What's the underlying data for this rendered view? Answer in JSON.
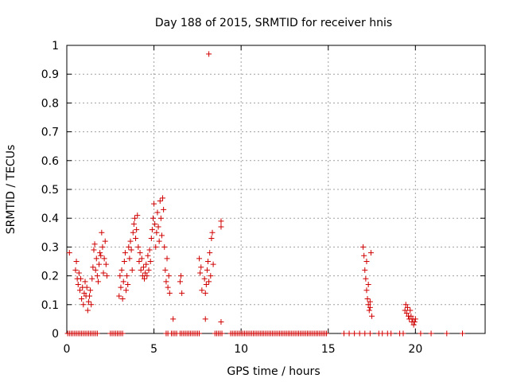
{
  "colors": {
    "series": "#d00000",
    "grid": "#a0a0a0",
    "frame": "#000000",
    "background": "#ffffff"
  },
  "chart_data": {
    "type": "scatter",
    "title": "Day 188 of 2015, SRMTID for receiver hnis",
    "xlabel": "GPS time / hours",
    "ylabel": "SRMTID / TECUs",
    "xlim": [
      0,
      24
    ],
    "ylim": [
      0,
      1
    ],
    "xticks": [
      0,
      5,
      10,
      15,
      20
    ],
    "xtick_labels": [
      "0",
      "5",
      "10",
      "15",
      "20"
    ],
    "yticks": [
      0,
      0.1,
      0.2,
      0.3,
      0.4,
      0.5,
      0.6,
      0.7,
      0.8,
      0.9,
      1
    ],
    "ytick_labels": [
      "0",
      "0.1",
      "0.2",
      "0.3",
      "0.4",
      "0.5",
      "0.6",
      "0.7",
      "0.8",
      "0.9",
      "1"
    ],
    "grid": true,
    "marker": "plus",
    "series": [
      {
        "name": "SRMTID",
        "points": [
          [
            0.15,
            0.28
          ],
          [
            0.5,
            0.22
          ],
          [
            0.55,
            0.25
          ],
          [
            0.6,
            0.19
          ],
          [
            0.65,
            0.17
          ],
          [
            0.7,
            0.21
          ],
          [
            0.75,
            0.15
          ],
          [
            0.8,
            0.19
          ],
          [
            0.85,
            0.12
          ],
          [
            0.9,
            0.16
          ],
          [
            0.95,
            0.1
          ],
          [
            1.0,
            0.14
          ],
          [
            1.05,
            0.18
          ],
          [
            1.1,
            0.13
          ],
          [
            1.15,
            0.16
          ],
          [
            1.2,
            0.08
          ],
          [
            1.25,
            0.11
          ],
          [
            1.3,
            0.13
          ],
          [
            1.35,
            0.15
          ],
          [
            1.4,
            0.1
          ],
          [
            1.45,
            0.19
          ],
          [
            1.5,
            0.23
          ],
          [
            1.55,
            0.29
          ],
          [
            1.6,
            0.31
          ],
          [
            1.65,
            0.22
          ],
          [
            1.7,
            0.26
          ],
          [
            1.75,
            0.2
          ],
          [
            1.8,
            0.18
          ],
          [
            1.85,
            0.24
          ],
          [
            1.9,
            0.28
          ],
          [
            1.95,
            0.27
          ],
          [
            2.0,
            0.35
          ],
          [
            2.05,
            0.3
          ],
          [
            2.1,
            0.21
          ],
          [
            2.15,
            0.26
          ],
          [
            2.2,
            0.32
          ],
          [
            2.25,
            0.24
          ],
          [
            2.3,
            0.2
          ],
          [
            3.0,
            0.13
          ],
          [
            3.05,
            0.2
          ],
          [
            3.1,
            0.16
          ],
          [
            3.15,
            0.22
          ],
          [
            3.2,
            0.12
          ],
          [
            3.25,
            0.18
          ],
          [
            3.3,
            0.25
          ],
          [
            3.35,
            0.28
          ],
          [
            3.4,
            0.15
          ],
          [
            3.45,
            0.2
          ],
          [
            3.5,
            0.17
          ],
          [
            3.55,
            0.3
          ],
          [
            3.6,
            0.26
          ],
          [
            3.65,
            0.32
          ],
          [
            3.7,
            0.29
          ],
          [
            3.75,
            0.22
          ],
          [
            3.8,
            0.35
          ],
          [
            3.85,
            0.38
          ],
          [
            3.9,
            0.4
          ],
          [
            3.95,
            0.33
          ],
          [
            4.0,
            0.36
          ],
          [
            4.05,
            0.41
          ],
          [
            4.1,
            0.3
          ],
          [
            4.15,
            0.25
          ],
          [
            4.2,
            0.28
          ],
          [
            4.25,
            0.22
          ],
          [
            4.3,
            0.26
          ],
          [
            4.35,
            0.2
          ],
          [
            4.4,
            0.23
          ],
          [
            4.45,
            0.19
          ],
          [
            4.5,
            0.21
          ],
          [
            4.55,
            0.24
          ],
          [
            4.6,
            0.2
          ],
          [
            4.65,
            0.27
          ],
          [
            4.7,
            0.22
          ],
          [
            4.75,
            0.29
          ],
          [
            4.8,
            0.25
          ],
          [
            4.85,
            0.33
          ],
          [
            4.9,
            0.36
          ],
          [
            4.95,
            0.4
          ],
          [
            5.0,
            0.45
          ],
          [
            5.05,
            0.38
          ],
          [
            5.1,
            0.3
          ],
          [
            5.15,
            0.35
          ],
          [
            5.2,
            0.42
          ],
          [
            5.25,
            0.37
          ],
          [
            5.3,
            0.32
          ],
          [
            5.35,
            0.46
          ],
          [
            5.4,
            0.4
          ],
          [
            5.45,
            0.34
          ],
          [
            5.5,
            0.47
          ],
          [
            5.55,
            0.43
          ],
          [
            5.6,
            0.3
          ],
          [
            5.65,
            0.22
          ],
          [
            5.7,
            0.18
          ],
          [
            5.75,
            0.26
          ],
          [
            5.8,
            0.16
          ],
          [
            5.85,
            0.2
          ],
          [
            5.9,
            0.14
          ],
          [
            6.1,
            0.05
          ],
          [
            6.5,
            0.18
          ],
          [
            6.55,
            0.2
          ],
          [
            6.6,
            0.14
          ],
          [
            7.6,
            0.26
          ],
          [
            7.65,
            0.21
          ],
          [
            7.7,
            0.23
          ],
          [
            7.75,
            0.15
          ],
          [
            7.9,
            0.19
          ],
          [
            7.95,
            0.14
          ],
          [
            8.0,
            0.17
          ],
          [
            8.05,
            0.22
          ],
          [
            8.1,
            0.25
          ],
          [
            8.15,
            0.18
          ],
          [
            8.2,
            0.28
          ],
          [
            8.25,
            0.2
          ],
          [
            8.3,
            0.33
          ],
          [
            8.35,
            0.35
          ],
          [
            8.4,
            0.24
          ],
          [
            8.15,
            0.97
          ],
          [
            7.95,
            0.05
          ],
          [
            8.85,
            0.39
          ],
          [
            8.85,
            0.37
          ],
          [
            8.85,
            0.04
          ],
          [
            17.0,
            0.3
          ],
          [
            17.05,
            0.27
          ],
          [
            17.1,
            0.22
          ],
          [
            17.15,
            0.19
          ],
          [
            17.2,
            0.15
          ],
          [
            17.25,
            0.12
          ],
          [
            17.3,
            0.1
          ],
          [
            17.35,
            0.08
          ],
          [
            17.4,
            0.11
          ],
          [
            17.45,
            0.28
          ],
          [
            17.5,
            0.06
          ],
          [
            17.3,
            0.17
          ],
          [
            17.2,
            0.25
          ],
          [
            17.4,
            0.09
          ],
          [
            19.4,
            0.08
          ],
          [
            19.45,
            0.1
          ],
          [
            19.5,
            0.07
          ],
          [
            19.55,
            0.09
          ],
          [
            19.6,
            0.06
          ],
          [
            19.65,
            0.05
          ],
          [
            19.7,
            0.08
          ],
          [
            19.75,
            0.06
          ],
          [
            19.8,
            0.04
          ],
          [
            19.85,
            0.05
          ],
          [
            19.9,
            0.03
          ],
          [
            19.95,
            0.04
          ],
          [
            20.0,
            0.05
          ]
        ]
      }
    ],
    "zero_points_x": [
      0.05,
      0.15,
      0.25,
      0.35,
      0.45,
      0.55,
      0.65,
      0.75,
      0.85,
      0.95,
      1.05,
      1.15,
      1.25,
      1.35,
      1.45,
      1.55,
      1.65,
      1.75,
      2.5,
      2.6,
      2.7,
      2.8,
      2.9,
      3.0,
      3.1,
      3.2,
      5.7,
      5.8,
      6.0,
      6.1,
      6.2,
      6.3,
      6.5,
      6.6,
      6.7,
      6.8,
      6.9,
      7.0,
      7.1,
      7.2,
      7.3,
      7.4,
      7.5,
      7.6,
      8.5,
      8.6,
      8.7,
      8.8,
      8.9,
      9.4,
      9.5,
      9.6,
      9.7,
      9.8,
      9.9,
      10.0,
      10.1,
      10.2,
      10.3,
      10.4,
      10.5,
      10.6,
      10.7,
      10.8,
      10.9,
      11.0,
      11.1,
      11.2,
      11.3,
      11.4,
      11.5,
      11.6,
      11.7,
      11.8,
      11.9,
      12.0,
      12.1,
      12.2,
      12.3,
      12.4,
      12.5,
      12.6,
      12.7,
      12.8,
      12.9,
      13.0,
      13.1,
      13.2,
      13.3,
      13.4,
      13.5,
      13.6,
      13.7,
      13.8,
      13.9,
      14.0,
      14.1,
      14.2,
      14.3,
      14.4,
      14.5,
      14.6,
      14.7,
      14.8,
      14.9,
      15.9,
      16.2,
      16.5,
      16.8,
      17.1,
      17.4,
      17.9,
      18.1,
      18.4,
      18.6,
      19.1,
      19.3,
      20.3,
      20.9,
      21.8,
      22.7
    ]
  }
}
